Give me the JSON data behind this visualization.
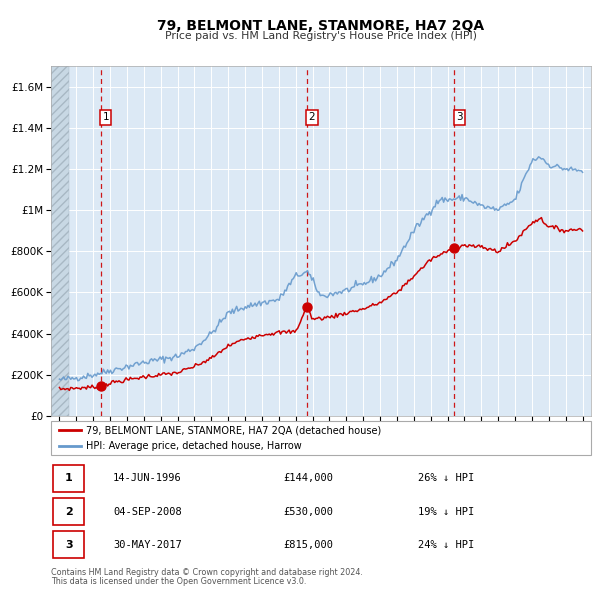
{
  "title": "79, BELMONT LANE, STANMORE, HA7 2QA",
  "subtitle": "Price paid vs. HM Land Registry's House Price Index (HPI)",
  "legend_label_red": "79, BELMONT LANE, STANMORE, HA7 2QA (detached house)",
  "legend_label_blue": "HPI: Average price, detached house, Harrow",
  "transactions": [
    {
      "num": 1,
      "date_str": "14-JUN-1996",
      "date_x": 1996.45,
      "price": 144000,
      "pct": "26% ↓ HPI"
    },
    {
      "num": 2,
      "date_str": "04-SEP-2008",
      "date_x": 2008.67,
      "price": 530000,
      "pct": "19% ↓ HPI"
    },
    {
      "num": 3,
      "date_str": "30-MAY-2017",
      "date_x": 2017.41,
      "price": 815000,
      "pct": "24% ↓ HPI"
    }
  ],
  "footer_line1": "Contains HM Land Registry data © Crown copyright and database right 2024.",
  "footer_line2": "This data is licensed under the Open Government Licence v3.0.",
  "ylim": [
    0,
    1700000
  ],
  "xlim_start": 1993.5,
  "xlim_end": 2025.5,
  "background_color": "#dce9f5",
  "grid_color": "#ffffff",
  "red_line_color": "#cc0000",
  "blue_line_color": "#6699cc",
  "dashed_vline_color": "#cc0000",
  "hpi_anchors_x": [
    1994,
    1995,
    1996,
    1997,
    1998,
    1999,
    2000,
    2001,
    2002,
    2003,
    2004,
    2005,
    2006,
    2007,
    2008.0,
    2008.7,
    2009.5,
    2010,
    2011,
    2012,
    2013,
    2014,
    2015,
    2016,
    2016.5,
    2017,
    2018,
    2019,
    2020,
    2021,
    2022,
    2022.5,
    2023,
    2024,
    2025
  ],
  "hpi_anchors_y": [
    175000,
    185000,
    200000,
    220000,
    240000,
    260000,
    275000,
    290000,
    330000,
    400000,
    500000,
    530000,
    550000,
    565000,
    680000,
    700000,
    580000,
    590000,
    610000,
    640000,
    680000,
    760000,
    900000,
    1000000,
    1050000,
    1050000,
    1060000,
    1020000,
    1000000,
    1050000,
    1240000,
    1260000,
    1220000,
    1200000,
    1190000
  ],
  "red_anchors_x": [
    1994,
    1995,
    1996.0,
    1996.45,
    1997,
    1998,
    1999,
    2000,
    2001,
    2002,
    2003,
    2004,
    2005,
    2006,
    2007,
    2008.0,
    2008.67,
    2009,
    2010,
    2011,
    2012,
    2013,
    2014,
    2015,
    2016,
    2017.0,
    2017.41,
    2018,
    2019,
    2020,
    2021,
    2022,
    2022.5,
    2023,
    2024,
    2025
  ],
  "red_anchors_y": [
    130000,
    135000,
    140000,
    144000,
    160000,
    175000,
    190000,
    200000,
    210000,
    240000,
    280000,
    340000,
    375000,
    395000,
    405000,
    410000,
    530000,
    470000,
    480000,
    500000,
    520000,
    550000,
    600000,
    680000,
    760000,
    800000,
    815000,
    830000,
    820000,
    800000,
    850000,
    940000,
    960000,
    920000,
    900000,
    910000
  ],
  "hpi_noise_seed": 42,
  "hpi_noise_scale": 8000,
  "red_noise_seed": 7,
  "red_noise_scale": 5000,
  "n_points": 370
}
